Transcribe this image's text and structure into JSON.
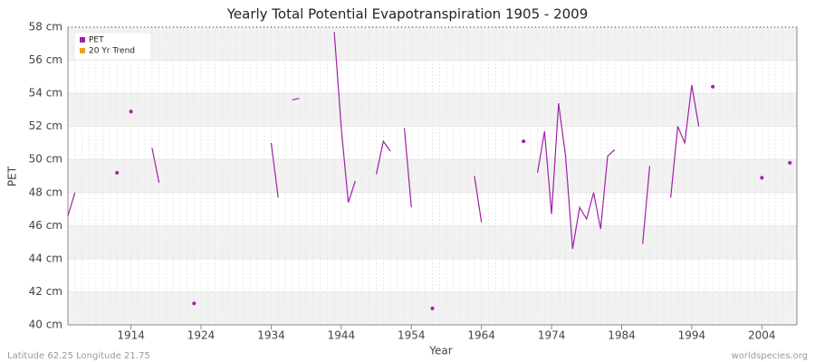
{
  "chart_data": {
    "type": "line",
    "title": "Yearly Total Potential Evapotranspiration 1905 - 2009",
    "x_label": "Year",
    "y_label": "PET",
    "footer_left": "Latitude 62.25 Longitude 21.75",
    "footer_right": "worldspecies.org",
    "x": [
      1905,
      1906,
      1907,
      1908,
      1909,
      1910,
      1911,
      1912,
      1913,
      1914,
      1915,
      1916,
      1917,
      1918,
      1919,
      1920,
      1921,
      1922,
      1923,
      1924,
      1925,
      1926,
      1927,
      1928,
      1929,
      1930,
      1931,
      1932,
      1933,
      1934,
      1935,
      1936,
      1937,
      1938,
      1939,
      1940,
      1941,
      1942,
      1943,
      1944,
      1945,
      1946,
      1947,
      1948,
      1949,
      1950,
      1951,
      1952,
      1953,
      1954,
      1955,
      1956,
      1957,
      1958,
      1959,
      1960,
      1961,
      1962,
      1963,
      1964,
      1965,
      1966,
      1967,
      1968,
      1969,
      1970,
      1971,
      1972,
      1973,
      1974,
      1975,
      1976,
      1977,
      1978,
      1979,
      1980,
      1981,
      1982,
      1983,
      1984,
      1985,
      1986,
      1987,
      1988,
      1989,
      1990,
      1991,
      1992,
      1993,
      1994,
      1995,
      1996,
      1997,
      1998,
      1999,
      2000,
      2001,
      2002,
      2003,
      2004,
      2005,
      2006,
      2007,
      2008,
      2009
    ],
    "series": [
      {
        "name": "PET",
        "color": "#a020a8",
        "values": [
          46.6,
          48.0,
          null,
          null,
          null,
          null,
          null,
          49.2,
          null,
          52.9,
          null,
          null,
          50.7,
          48.6,
          null,
          null,
          null,
          null,
          41.3,
          null,
          null,
          null,
          null,
          null,
          null,
          null,
          null,
          null,
          null,
          51.0,
          47.7,
          null,
          53.6,
          53.7,
          null,
          null,
          null,
          null,
          57.7,
          51.9,
          47.4,
          48.7,
          null,
          null,
          49.1,
          51.1,
          50.5,
          null,
          51.9,
          47.1,
          null,
          null,
          41.0,
          null,
          null,
          null,
          null,
          null,
          49.0,
          46.2,
          null,
          null,
          null,
          null,
          null,
          51.1,
          null,
          49.2,
          51.7,
          46.7,
          53.4,
          50.2,
          44.6,
          47.1,
          46.4,
          48.0,
          45.8,
          50.2,
          50.6,
          null,
          null,
          null,
          44.9,
          49.6,
          null,
          null,
          47.7,
          52.0,
          51.0,
          54.5,
          52.0,
          null,
          54.4,
          null,
          null,
          null,
          null,
          null,
          null,
          48.9,
          null,
          null,
          null,
          49.8,
          null
        ]
      }
    ],
    "legend": [
      {
        "name": "PET",
        "color": "#a020a8"
      },
      {
        "name": "20 Yr Trend",
        "color": "#f0a020"
      }
    ],
    "legend_position": "upper left",
    "xlim": [
      1905,
      2009
    ],
    "xticks": [
      1914,
      1924,
      1934,
      1944,
      1954,
      1964,
      1974,
      1984,
      1994,
      2004
    ],
    "ylim": [
      40,
      58
    ],
    "yticks": [
      {
        "value": 40,
        "label": "40 cm"
      },
      {
        "value": 42,
        "label": "42 cm"
      },
      {
        "value": 44,
        "label": "44 cm"
      },
      {
        "value": 46,
        "label": "46 cm"
      },
      {
        "value": 48,
        "label": "48 cm"
      },
      {
        "value": 50,
        "label": "50 cm"
      },
      {
        "value": 52,
        "label": "52 cm"
      },
      {
        "value": 54,
        "label": "54 cm"
      },
      {
        "value": 56,
        "label": "56 cm"
      },
      {
        "value": 58,
        "label": "58 cm"
      }
    ],
    "grid": true
  }
}
